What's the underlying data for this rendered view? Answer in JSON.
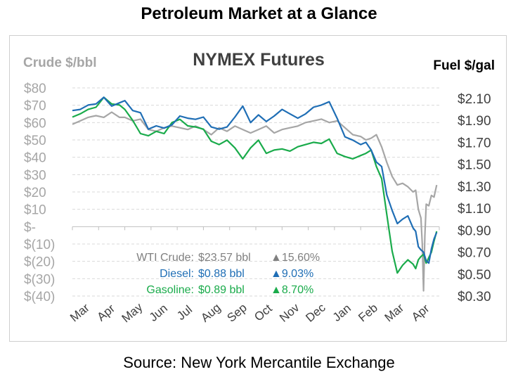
{
  "page_title": "Petroleum Market at a Glance",
  "source": "Source: New York Mercantile Exchange",
  "chart_data": {
    "type": "line",
    "title": "NYMEX Futures",
    "left_axis_label": "Crude $/bbl",
    "right_axis_label": "Fuel $/gal",
    "left_ticks": [
      "$80",
      "$70",
      "$60",
      "$50",
      "$40",
      "$30",
      "$20",
      "$10",
      "$-",
      "$(10)",
      "$(20)",
      "$(30)",
      "$(40)"
    ],
    "left_values": [
      80,
      70,
      60,
      50,
      40,
      30,
      20,
      10,
      0,
      -10,
      -20,
      -30,
      -40
    ],
    "right_ticks": [
      "$2.10",
      "$1.90",
      "$1.70",
      "$1.50",
      "$1.30",
      "$1.10",
      "$0.90",
      "$0.70",
      "$0.50",
      "$0.30"
    ],
    "right_values": [
      2.1,
      1.9,
      1.7,
      1.5,
      1.3,
      1.1,
      0.9,
      0.7,
      0.5,
      0.3
    ],
    "ylim_left": [
      -40,
      80
    ],
    "ylim_right": [
      0.3,
      2.2
    ],
    "x_tick_labels": [
      "Mar",
      "Apr",
      "May",
      "Jun",
      "Jul",
      "Aug",
      "Sep",
      "Oct",
      "Nov",
      "Dec",
      "Jan",
      "Feb",
      "Mar",
      "Apr"
    ],
    "grid": "horizontal dashed",
    "series": [
      {
        "name": "WTI Crude",
        "axis": "left",
        "color": "#a6a6a6",
        "x": [
          0,
          0.3,
          0.6,
          0.9,
          1.2,
          1.5,
          1.8,
          2.0,
          2.3,
          2.6,
          2.9,
          3.2,
          3.5,
          3.8,
          4.1,
          4.4,
          4.7,
          5.0,
          5.3,
          5.6,
          5.9,
          6.2,
          6.5,
          6.8,
          7.1,
          7.4,
          7.7,
          8.0,
          8.3,
          8.6,
          8.9,
          9.2,
          9.5,
          9.8,
          10.1,
          10.4,
          10.7,
          11.0,
          11.2,
          11.4,
          11.6,
          11.8,
          12.0,
          12.2,
          12.4,
          12.6,
          12.8,
          13.0,
          13.1,
          13.2,
          13.3,
          13.35,
          13.4,
          13.45,
          13.5,
          13.6,
          13.7,
          13.8,
          13.9
        ],
        "values": [
          59,
          61,
          63,
          64,
          63,
          66,
          63,
          63,
          61,
          62,
          56,
          55,
          57,
          58,
          57,
          56,
          58,
          56,
          53,
          57,
          55,
          58,
          56,
          54,
          56,
          58,
          54,
          56,
          57,
          58,
          60,
          61,
          62,
          60,
          61,
          57,
          53,
          52,
          50,
          51,
          53,
          46,
          37,
          29,
          24,
          25,
          23,
          20,
          21,
          10,
          5,
          -10,
          -37,
          -5,
          13,
          12,
          18,
          17,
          24
        ]
      },
      {
        "name": "Diesel",
        "axis": "right",
        "color": "#1f6eb5",
        "x": [
          0,
          0.3,
          0.6,
          0.9,
          1.2,
          1.5,
          1.8,
          2.0,
          2.3,
          2.6,
          2.9,
          3.2,
          3.5,
          3.8,
          4.1,
          4.4,
          4.7,
          5.0,
          5.3,
          5.6,
          5.9,
          6.2,
          6.5,
          6.8,
          7.1,
          7.4,
          7.7,
          8.0,
          8.3,
          8.6,
          8.9,
          9.2,
          9.5,
          9.8,
          10.1,
          10.4,
          10.7,
          11.0,
          11.2,
          11.4,
          11.6,
          11.8,
          12.0,
          12.2,
          12.4,
          12.6,
          12.8,
          13.0,
          13.1,
          13.2,
          13.3,
          13.4,
          13.5,
          13.6,
          13.7,
          13.8,
          13.9
        ],
        "values": [
          1.99,
          2.0,
          2.04,
          2.05,
          2.11,
          2.03,
          2.06,
          2.08,
          1.99,
          1.97,
          1.82,
          1.85,
          1.83,
          1.86,
          1.94,
          1.92,
          1.91,
          1.93,
          1.84,
          1.82,
          1.84,
          1.93,
          2.03,
          1.88,
          1.95,
          1.89,
          1.94,
          2.0,
          1.96,
          1.92,
          1.96,
          2.02,
          2.04,
          2.07,
          1.92,
          1.75,
          1.72,
          1.68,
          1.7,
          1.63,
          1.52,
          1.48,
          1.22,
          1.08,
          0.96,
          1.0,
          1.03,
          0.92,
          0.89,
          0.75,
          0.72,
          0.7,
          0.62,
          0.6,
          0.73,
          0.82,
          0.88
        ]
      },
      {
        "name": "Gasoline",
        "axis": "right",
        "color": "#1aab4b",
        "x": [
          0,
          0.3,
          0.6,
          0.9,
          1.2,
          1.5,
          1.8,
          2.0,
          2.3,
          2.6,
          2.9,
          3.2,
          3.5,
          3.8,
          4.1,
          4.4,
          4.7,
          5.0,
          5.3,
          5.6,
          5.9,
          6.2,
          6.5,
          6.8,
          7.1,
          7.4,
          7.7,
          8.0,
          8.3,
          8.6,
          8.9,
          9.2,
          9.5,
          9.8,
          10.1,
          10.4,
          10.7,
          11.0,
          11.2,
          11.4,
          11.6,
          11.8,
          12.0,
          12.2,
          12.4,
          12.6,
          12.8,
          13.0,
          13.1,
          13.2,
          13.3,
          13.4,
          13.5,
          13.6,
          13.7,
          13.8,
          13.9
        ],
        "values": [
          1.93,
          1.96,
          2.0,
          2.02,
          2.11,
          2.05,
          2.04,
          2.0,
          1.9,
          1.78,
          1.76,
          1.8,
          1.78,
          1.88,
          1.91,
          1.85,
          1.84,
          1.82,
          1.71,
          1.68,
          1.72,
          1.65,
          1.55,
          1.65,
          1.72,
          1.6,
          1.63,
          1.64,
          1.62,
          1.66,
          1.68,
          1.7,
          1.69,
          1.73,
          1.6,
          1.57,
          1.55,
          1.58,
          1.6,
          1.63,
          1.48,
          1.37,
          1.04,
          0.71,
          0.51,
          0.58,
          0.63,
          0.59,
          0.55,
          0.63,
          0.66,
          0.68,
          0.6,
          0.65,
          0.7,
          0.8,
          0.89
        ]
      }
    ],
    "annotations": [
      {
        "label": "WTI Crude:",
        "value": "$23.57 bbl",
        "change": "▲15.60%",
        "color": "#808080"
      },
      {
        "label": "Diesel:",
        "value": "$0.88 bbl",
        "change": "▲9.03%",
        "color": "#1f6eb5"
      },
      {
        "label": "Gasoline:",
        "value": "$0.89 bbl",
        "change": "▲8.70%",
        "color": "#1aab4b"
      }
    ]
  }
}
